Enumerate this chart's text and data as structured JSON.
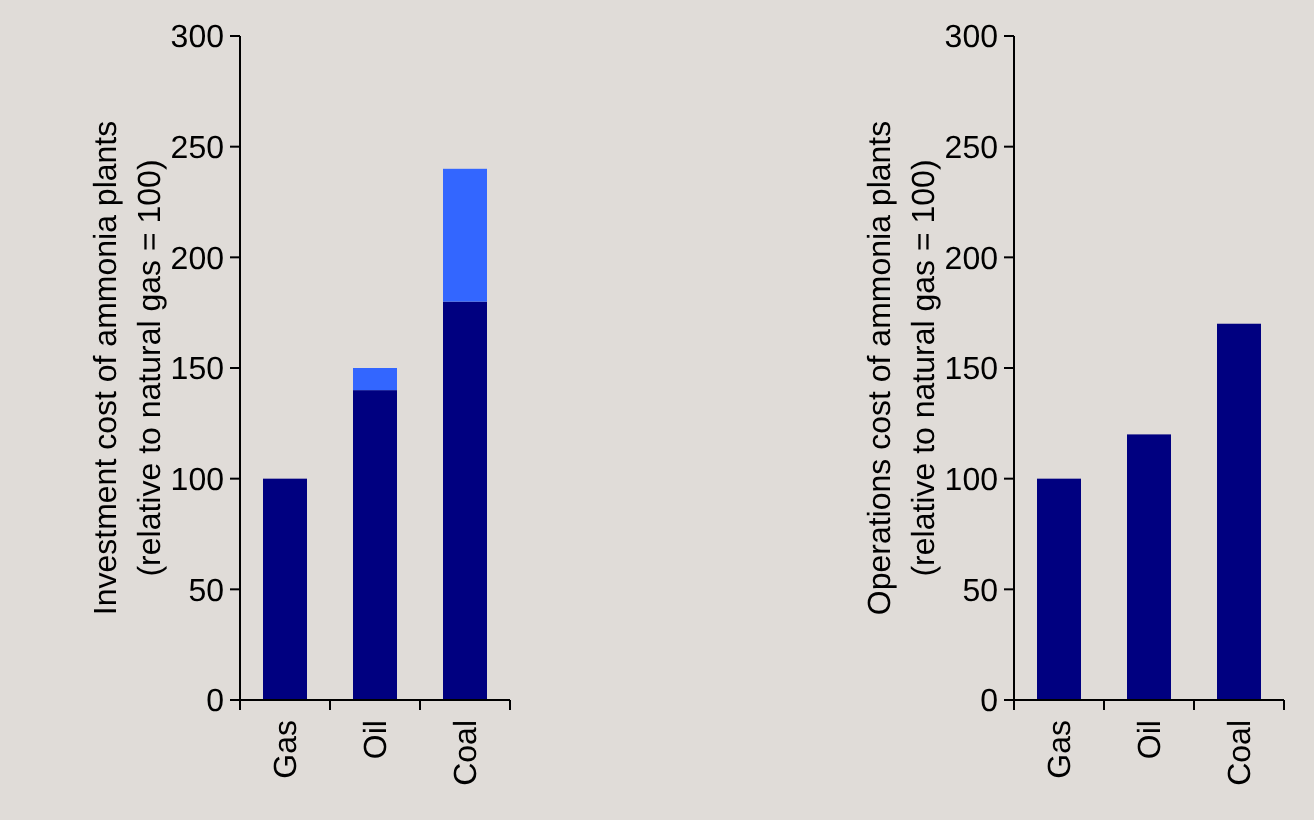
{
  "chart_data": [
    {
      "type": "bar",
      "stacked": true,
      "ylabel": "Investment cost of ammonia plants\n(relative to natural gas = 100)",
      "categories": [
        "Gas",
        "Oil",
        "Coal"
      ],
      "ylim": [
        0,
        300
      ],
      "yticks": [
        0,
        50,
        100,
        150,
        200,
        250,
        300
      ],
      "grid": false,
      "series": [
        {
          "color": "#000080",
          "values": [
            100,
            140,
            180
          ]
        },
        {
          "color": "#3366ff",
          "values": [
            0,
            10,
            60
          ]
        }
      ]
    },
    {
      "type": "bar",
      "ylabel": "Operations cost of ammonia plants\n(relative to natural gas = 100)",
      "categories": [
        "Gas",
        "Oil",
        "Coal"
      ],
      "ylim": [
        0,
        300
      ],
      "yticks": [
        0,
        50,
        100,
        150,
        200,
        250,
        300
      ],
      "grid": false,
      "series": [
        {
          "color": "#000080",
          "values": [
            100,
            120,
            170
          ]
        }
      ]
    }
  ]
}
